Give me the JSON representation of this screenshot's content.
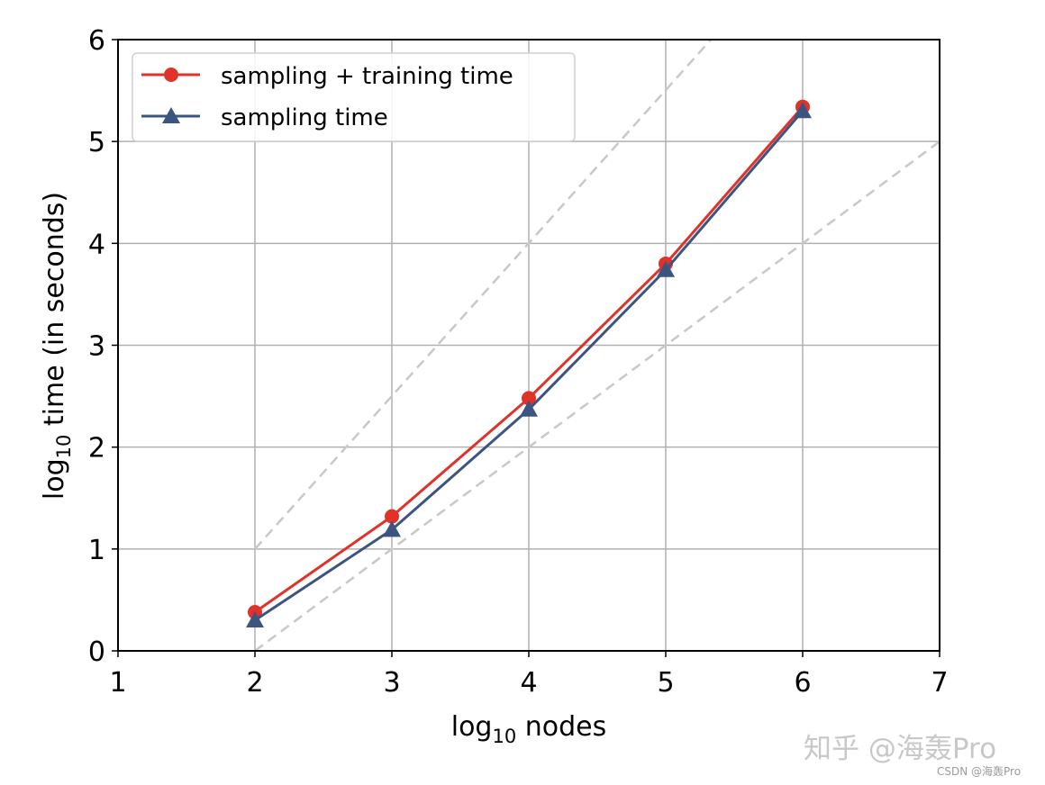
{
  "chart_data": {
    "type": "line",
    "title": "",
    "xlabel": "log10 nodes",
    "ylabel": "log10 time (in seconds)",
    "xlim": [
      1,
      7
    ],
    "ylim": [
      0,
      6
    ],
    "xticks": [
      1,
      2,
      3,
      4,
      5,
      6,
      7
    ],
    "yticks": [
      0,
      1,
      2,
      3,
      4,
      5,
      6
    ],
    "grid": true,
    "legend_position": "upper left",
    "x": [
      2,
      3,
      4,
      5,
      6
    ],
    "series": [
      {
        "name": "sampling + training time",
        "values": [
          0.38,
          1.32,
          2.48,
          3.8,
          5.34
        ],
        "color": "#e03229",
        "marker": "circle"
      },
      {
        "name": "sampling time",
        "values": [
          0.3,
          1.19,
          2.37,
          3.74,
          5.3
        ],
        "color": "#3b5580",
        "marker": "triangle"
      }
    ],
    "reference_lines": [
      {
        "style": "dashed",
        "color": "#c8c8c8",
        "slope": 1.5,
        "points": [
          [
            2,
            1
          ],
          [
            5.33,
            6
          ]
        ]
      },
      {
        "style": "dashed",
        "color": "#c8c8c8",
        "slope": 1,
        "points": [
          [
            2,
            0
          ],
          [
            7,
            5
          ]
        ]
      }
    ]
  },
  "labels": {
    "xlabel_main": "log",
    "xlabel_sub": "10",
    "xlabel_rest": " nodes",
    "ylabel_main": "log",
    "ylabel_sub": "10",
    "ylabel_rest": " time (in seconds)",
    "legend": [
      "sampling + training time",
      "sampling time"
    ]
  },
  "watermark": {
    "zhihu": "知乎 @海轰Pro",
    "csdn": "CSDN @海轰Pro"
  }
}
